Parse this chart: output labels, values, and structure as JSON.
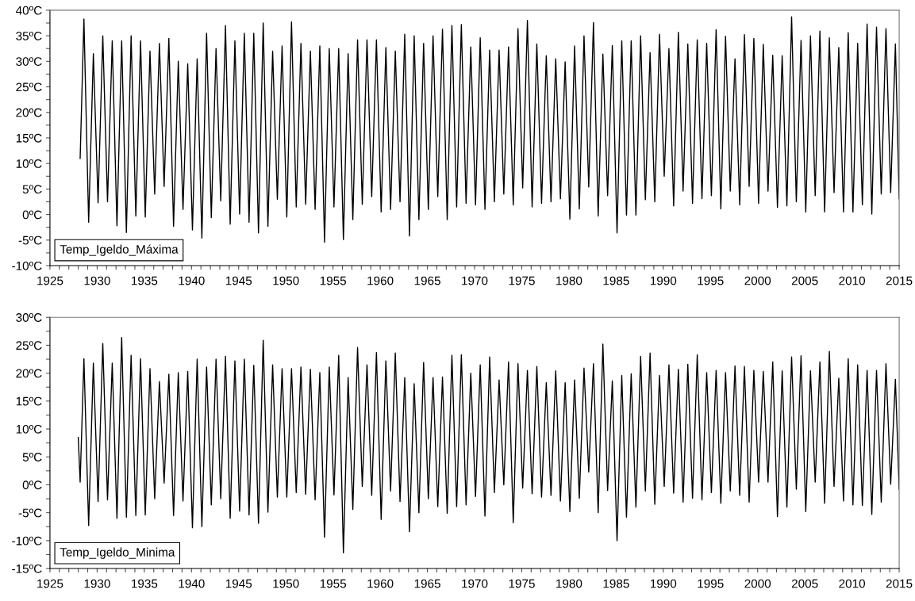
{
  "chart_data": [
    {
      "type": "line",
      "legend": "bottom left",
      "xlim": [
        1925,
        2015
      ],
      "ylim": [
        -10,
        40
      ],
      "xticks": [
        1925,
        {
          "value": 1926,
          "label": null
        },
        {
          "value": 1927,
          "label": null
        },
        {
          "value": 1928,
          "label": null
        },
        {
          "value": 1929,
          "label": null
        },
        1930,
        {
          "value": 1931,
          "label": null
        },
        {
          "value": 1932,
          "label": null
        },
        {
          "value": 1933,
          "label": null
        },
        {
          "value": 1934,
          "label": null
        },
        1935,
        {
          "value": 1936,
          "label": null
        },
        {
          "value": 1937,
          "label": null
        },
        {
          "value": 1938,
          "label": null
        },
        {
          "value": 1939,
          "label": null
        },
        1940,
        {
          "value": 1941,
          "label": null
        },
        {
          "value": 1942,
          "label": null
        },
        {
          "value": 1943,
          "label": null
        },
        {
          "value": 1944,
          "label": null
        },
        1945,
        {
          "value": 1946,
          "label": null
        },
        {
          "value": 1947,
          "label": null
        },
        {
          "value": 1948,
          "label": null
        },
        {
          "value": 1949,
          "label": null
        },
        1950,
        {
          "value": 1951,
          "label": null
        },
        {
          "value": 1952,
          "label": null
        },
        {
          "value": 1953,
          "label": null
        },
        {
          "value": 1954,
          "label": null
        },
        1955,
        {
          "value": 1956,
          "label": null
        },
        {
          "value": 1957,
          "label": null
        },
        {
          "value": 1958,
          "label": null
        },
        {
          "value": 1959,
          "label": null
        },
        1960,
        {
          "value": 1961,
          "label": null
        },
        {
          "value": 1962,
          "label": null
        },
        {
          "value": 1963,
          "label": null
        },
        {
          "value": 1964,
          "label": null
        },
        1965,
        {
          "value": 1966,
          "label": null
        },
        {
          "value": 1967,
          "label": null
        },
        {
          "value": 1968,
          "label": null
        },
        {
          "value": 1969,
          "label": null
        },
        1970,
        {
          "value": 1971,
          "label": null
        },
        {
          "value": 1972,
          "label": null
        },
        {
          "value": 1973,
          "label": null
        },
        {
          "value": 1974,
          "label": null
        },
        1975,
        {
          "value": 1976,
          "label": null
        },
        {
          "value": 1977,
          "label": null
        },
        {
          "value": 1978,
          "label": null
        },
        {
          "value": 1979,
          "label": null
        },
        1980,
        {
          "value": 1981,
          "label": null
        },
        {
          "value": 1982,
          "label": null
        },
        {
          "value": 1983,
          "label": null
        },
        {
          "value": 1984,
          "label": null
        },
        1985,
        {
          "value": 1986,
          "label": null
        },
        {
          "value": 1987,
          "label": null
        },
        {
          "value": 1988,
          "label": null
        },
        {
          "value": 1989,
          "label": null
        },
        1990,
        {
          "value": 1991,
          "label": null
        },
        {
          "value": 1992,
          "label": null
        },
        {
          "value": 1993,
          "label": null
        },
        {
          "value": 1994,
          "label": null
        },
        1995,
        {
          "value": 1996,
          "label": null
        },
        {
          "value": 1997,
          "label": null
        },
        {
          "value": 1998,
          "label": null
        },
        {
          "value": 1999,
          "label": null
        },
        2000,
        {
          "value": 2001,
          "label": null
        },
        {
          "value": 2002,
          "label": null
        },
        {
          "value": 2003,
          "label": null
        },
        {
          "value": 2004,
          "label": null
        },
        2005,
        {
          "value": 2006,
          "label": null
        },
        {
          "value": 2007,
          "label": null
        },
        {
          "value": 2008,
          "label": null
        },
        {
          "value": 2009,
          "label": null
        },
        2010,
        {
          "value": 2011,
          "label": null
        },
        {
          "value": 2012,
          "label": null
        },
        {
          "value": 2013,
          "label": null
        },
        {
          "value": 2014,
          "label": null
        },
        2015
      ],
      "yticks": [
        {
          "value": -10,
          "label": "-10ºC"
        },
        {
          "value": -7.5,
          "label": null
        },
        {
          "value": -5,
          "label": "-5ºC"
        },
        {
          "value": -2.5,
          "label": null
        },
        {
          "value": 0,
          "label": "0ºC"
        },
        {
          "value": 2.5,
          "label": null
        },
        {
          "value": 5,
          "label": "5ºC"
        },
        {
          "value": 7.5,
          "label": null
        },
        {
          "value": 10,
          "label": "10ºC"
        },
        {
          "value": 12.5,
          "label": null
        },
        {
          "value": 15,
          "label": "15ºC"
        },
        {
          "value": 17.5,
          "label": null
        },
        {
          "value": 20,
          "label": "20ºC"
        },
        {
          "value": 22.5,
          "label": null
        },
        {
          "value": 25,
          "label": "25ºC"
        },
        {
          "value": 27.5,
          "label": null
        },
        {
          "value": 30,
          "label": "30ºC"
        },
        {
          "value": 32.5,
          "label": null
        },
        {
          "value": 35,
          "label": "35ºC"
        },
        {
          "value": 37.5,
          "label": null
        },
        {
          "value": 40,
          "label": "40ºC"
        }
      ],
      "series": [
        {
          "name": "Temp_Igeldo_Máxima",
          "color": "#000000",
          "line_style": "solid",
          "x": [
            1928.2,
            1928.6,
            1929.1,
            1929.6,
            1930.1,
            1930.6,
            1931.1,
            1931.6,
            1932.1,
            1932.6,
            1933.1,
            1933.6,
            1934.1,
            1934.6,
            1935.1,
            1935.6,
            1936.1,
            1936.6,
            1937.1,
            1937.6,
            1938.1,
            1938.6,
            1939.1,
            1939.6,
            1940.1,
            1940.6,
            1941.1,
            1941.6,
            1942.1,
            1942.6,
            1943.1,
            1943.6,
            1944.1,
            1944.6,
            1945.1,
            1945.6,
            1946.1,
            1946.6,
            1947.1,
            1947.6,
            1948.1,
            1948.6,
            1949.1,
            1949.6,
            1950.1,
            1950.6,
            1951.1,
            1951.6,
            1952.1,
            1952.6,
            1953.1,
            1953.6,
            1954.1,
            1954.6,
            1955.1,
            1955.6,
            1956.1,
            1956.6,
            1957.1,
            1957.6,
            1958.1,
            1958.6,
            1959.1,
            1959.6,
            1960.1,
            1960.6,
            1961.1,
            1961.6,
            1962.1,
            1962.6,
            1963.1,
            1963.6,
            1964.1,
            1964.6,
            1965.1,
            1965.6,
            1966.1,
            1966.6,
            1967.1,
            1967.6,
            1968.1,
            1968.6,
            1969.1,
            1969.6,
            1970.1,
            1970.6,
            1971.1,
            1971.6,
            1972.1,
            1972.6,
            1973.1,
            1973.6,
            1974.1,
            1974.6,
            1975.1,
            1975.6,
            1976.1,
            1976.6,
            1977.1,
            1977.6,
            1978.1,
            1978.6,
            1979.1,
            1979.6,
            1980.1,
            1980.6,
            1981.1,
            1981.6,
            1982.1,
            1982.6,
            1983.1,
            1983.6,
            1984.1,
            1984.6,
            1985.1,
            1985.6,
            1986.1,
            1986.6,
            1987.1,
            1987.6,
            1988.1,
            1988.6,
            1989.1,
            1989.6,
            1990.1,
            1990.6,
            1991.1,
            1991.6,
            1992.1,
            1992.6,
            1993.1,
            1993.6,
            1994.1,
            1994.6,
            1995.1,
            1995.6,
            1996.1,
            1996.6,
            1997.1,
            1997.6,
            1998.1,
            1998.6,
            1999.1,
            1999.6,
            2000.1,
            2000.6,
            2001.1,
            2001.6,
            2002.1,
            2002.6,
            2003.1,
            2003.6,
            2004.1,
            2004.6,
            2005.1,
            2005.6,
            2006.1,
            2006.6,
            2007.1,
            2007.6,
            2008.1,
            2008.6,
            2009.1,
            2009.6,
            2010.1,
            2010.6,
            2011.1,
            2011.6,
            2012.1,
            2012.6,
            2013.1,
            2013.6,
            2014.1,
            2014.6,
            2015.0
          ],
          "values": [
            11,
            38.3,
            -1.5,
            31.5,
            2.3,
            35,
            2.5,
            34,
            -2.2,
            34,
            -3.5,
            35,
            -0.3,
            34,
            -0.5,
            32,
            4,
            33.5,
            5.5,
            34.5,
            -2.3,
            30,
            1,
            29.5,
            -3,
            30.5,
            -4.6,
            35.5,
            -0.6,
            32.5,
            2.7,
            37,
            -1.9,
            34,
            0.1,
            35.5,
            -1.5,
            35.5,
            -3.6,
            37.5,
            -2.3,
            32,
            3,
            33,
            -0.5,
            37.7,
            1.5,
            33.5,
            2,
            32,
            1,
            33,
            -5.4,
            32.5,
            1.5,
            32.5,
            -4.9,
            31.5,
            -1,
            34.2,
            2,
            34.2,
            3.5,
            34.2,
            0.5,
            32.7,
            1,
            32,
            2.5,
            35.3,
            -4.2,
            35,
            -1,
            33.5,
            1,
            35,
            3.5,
            36.3,
            -1,
            37,
            1.5,
            37.2,
            2.2,
            32.8,
            1.9,
            34.6,
            1,
            32.2,
            2.5,
            32.2,
            4,
            32.8,
            1.9,
            36.4,
            5.2,
            38,
            1.5,
            33.4,
            2.2,
            31.1,
            2.5,
            30.5,
            3.1,
            29.9,
            -0.9,
            33,
            1.1,
            35,
            5.4,
            37.6,
            -0.3,
            31.4,
            3.7,
            33.1,
            -3.6,
            34,
            -0.1,
            34,
            -0.1,
            35,
            2.9,
            31.7,
            2.5,
            35.3,
            7.5,
            32.5,
            1.7,
            35.7,
            4.6,
            33.4,
            2.2,
            34.2,
            3.1,
            33.5,
            3.7,
            36.2,
            1.1,
            34.9,
            4.6,
            30.5,
            1.9,
            35.2,
            5.5,
            34.5,
            2.2,
            33.3,
            4.6,
            31.2,
            1.4,
            31.1,
            1.7,
            38.7,
            2.5,
            34.1,
            0.5,
            35,
            3.7,
            35.9,
            0.5,
            34.6,
            4.3,
            32.7,
            0.5,
            35.6,
            0.5,
            33.5,
            1.9,
            37.3,
            0.1,
            36.7,
            4,
            36.4,
            4.3,
            33.4,
            3.1
          ]
        }
      ]
    },
    {
      "type": "line",
      "legend": "bottom left",
      "xlim": [
        1925,
        2015
      ],
      "ylim": [
        -15,
        30
      ],
      "xticks": [
        1925,
        {
          "value": 1926,
          "label": null
        },
        {
          "value": 1927,
          "label": null
        },
        {
          "value": 1928,
          "label": null
        },
        {
          "value": 1929,
          "label": null
        },
        1930,
        {
          "value": 1931,
          "label": null
        },
        {
          "value": 1932,
          "label": null
        },
        {
          "value": 1933,
          "label": null
        },
        {
          "value": 1934,
          "label": null
        },
        1935,
        {
          "value": 1936,
          "label": null
        },
        {
          "value": 1937,
          "label": null
        },
        {
          "value": 1938,
          "label": null
        },
        {
          "value": 1939,
          "label": null
        },
        1940,
        {
          "value": 1941,
          "label": null
        },
        {
          "value": 1942,
          "label": null
        },
        {
          "value": 1943,
          "label": null
        },
        {
          "value": 1944,
          "label": null
        },
        1945,
        {
          "value": 1946,
          "label": null
        },
        {
          "value": 1947,
          "label": null
        },
        {
          "value": 1948,
          "label": null
        },
        {
          "value": 1949,
          "label": null
        },
        1950,
        {
          "value": 1951,
          "label": null
        },
        {
          "value": 1952,
          "label": null
        },
        {
          "value": 1953,
          "label": null
        },
        {
          "value": 1954,
          "label": null
        },
        1955,
        {
          "value": 1956,
          "label": null
        },
        {
          "value": 1957,
          "label": null
        },
        {
          "value": 1958,
          "label": null
        },
        {
          "value": 1959,
          "label": null
        },
        1960,
        {
          "value": 1961,
          "label": null
        },
        {
          "value": 1962,
          "label": null
        },
        {
          "value": 1963,
          "label": null
        },
        {
          "value": 1964,
          "label": null
        },
        1965,
        {
          "value": 1966,
          "label": null
        },
        {
          "value": 1967,
          "label": null
        },
        {
          "value": 1968,
          "label": null
        },
        {
          "value": 1969,
          "label": null
        },
        1970,
        {
          "value": 1971,
          "label": null
        },
        {
          "value": 1972,
          "label": null
        },
        {
          "value": 1973,
          "label": null
        },
        {
          "value": 1974,
          "label": null
        },
        1975,
        {
          "value": 1976,
          "label": null
        },
        {
          "value": 1977,
          "label": null
        },
        {
          "value": 1978,
          "label": null
        },
        {
          "value": 1979,
          "label": null
        },
        1980,
        {
          "value": 1981,
          "label": null
        },
        {
          "value": 1982,
          "label": null
        },
        {
          "value": 1983,
          "label": null
        },
        {
          "value": 1984,
          "label": null
        },
        1985,
        {
          "value": 1986,
          "label": null
        },
        {
          "value": 1987,
          "label": null
        },
        {
          "value": 1988,
          "label": null
        },
        {
          "value": 1989,
          "label": null
        },
        1990,
        {
          "value": 1991,
          "label": null
        },
        {
          "value": 1992,
          "label": null
        },
        {
          "value": 1993,
          "label": null
        },
        {
          "value": 1994,
          "label": null
        },
        1995,
        {
          "value": 1996,
          "label": null
        },
        {
          "value": 1997,
          "label": null
        },
        {
          "value": 1998,
          "label": null
        },
        {
          "value": 1999,
          "label": null
        },
        2000,
        {
          "value": 2001,
          "label": null
        },
        {
          "value": 2002,
          "label": null
        },
        {
          "value": 2003,
          "label": null
        },
        {
          "value": 2004,
          "label": null
        },
        2005,
        {
          "value": 2006,
          "label": null
        },
        {
          "value": 2007,
          "label": null
        },
        {
          "value": 2008,
          "label": null
        },
        {
          "value": 2009,
          "label": null
        },
        2010,
        {
          "value": 2011,
          "label": null
        },
        {
          "value": 2012,
          "label": null
        },
        {
          "value": 2013,
          "label": null
        },
        {
          "value": 2014,
          "label": null
        },
        2015
      ],
      "yticks": [
        {
          "value": -15,
          "label": "-15ºC"
        },
        {
          "value": -12.5,
          "label": null
        },
        {
          "value": -10,
          "label": "-10ºC"
        },
        {
          "value": -7.5,
          "label": null
        },
        {
          "value": -5,
          "label": "-5ºC"
        },
        {
          "value": -2.5,
          "label": null
        },
        {
          "value": 0,
          "label": "0ºC"
        },
        {
          "value": 2.5,
          "label": null
        },
        {
          "value": 5,
          "label": "5ºC"
        },
        {
          "value": 7.5,
          "label": null
        },
        {
          "value": 10,
          "label": "10ºC"
        },
        {
          "value": 12.5,
          "label": null
        },
        {
          "value": 15,
          "label": "15ºC"
        },
        {
          "value": 17.5,
          "label": null
        },
        {
          "value": 20,
          "label": "20ºC"
        },
        {
          "value": 22.5,
          "label": null
        },
        {
          "value": 25,
          "label": "25ºC"
        },
        {
          "value": 27.5,
          "label": null
        },
        {
          "value": 30,
          "label": "30ºC"
        }
      ],
      "series": [
        {
          "name": "Temp_Igeldo_Minima",
          "color": "#000000",
          "line_style": "solid",
          "x": [
            1928.0,
            1928.2,
            1928.6,
            1929.1,
            1929.6,
            1930.1,
            1930.6,
            1931.1,
            1931.6,
            1932.1,
            1932.6,
            1933.1,
            1933.6,
            1934.1,
            1934.6,
            1935.1,
            1935.6,
            1936.1,
            1936.6,
            1937.1,
            1937.6,
            1938.1,
            1938.6,
            1939.1,
            1939.6,
            1940.1,
            1940.6,
            1941.1,
            1941.6,
            1942.1,
            1942.6,
            1943.1,
            1943.6,
            1944.1,
            1944.6,
            1945.1,
            1945.6,
            1946.1,
            1946.6,
            1947.1,
            1947.6,
            1948.1,
            1948.6,
            1949.1,
            1949.6,
            1950.1,
            1950.6,
            1951.1,
            1951.6,
            1952.1,
            1952.6,
            1953.1,
            1953.6,
            1954.1,
            1954.6,
            1955.1,
            1955.6,
            1956.1,
            1956.6,
            1957.1,
            1957.6,
            1958.1,
            1958.6,
            1959.1,
            1959.6,
            1960.1,
            1960.6,
            1961.1,
            1961.6,
            1962.1,
            1962.6,
            1963.1,
            1963.6,
            1964.1,
            1964.6,
            1965.1,
            1965.6,
            1966.1,
            1966.6,
            1967.1,
            1967.6,
            1968.1,
            1968.6,
            1969.1,
            1969.6,
            1970.1,
            1970.6,
            1971.1,
            1971.6,
            1972.1,
            1972.6,
            1973.1,
            1973.6,
            1974.1,
            1974.6,
            1975.1,
            1975.6,
            1976.1,
            1976.6,
            1977.1,
            1977.6,
            1978.1,
            1978.6,
            1979.1,
            1979.6,
            1980.1,
            1980.6,
            1981.1,
            1981.6,
            1982.1,
            1982.6,
            1983.1,
            1983.6,
            1984.1,
            1984.6,
            1985.1,
            1985.6,
            1986.1,
            1986.6,
            1987.1,
            1987.6,
            1988.1,
            1988.6,
            1989.1,
            1989.6,
            1990.1,
            1990.6,
            1991.1,
            1991.6,
            1992.1,
            1992.6,
            1993.1,
            1993.6,
            1994.1,
            1994.6,
            1995.1,
            1995.6,
            1996.1,
            1996.6,
            1997.1,
            1997.6,
            1998.1,
            1998.6,
            1999.1,
            1999.6,
            2000.1,
            2000.6,
            2001.1,
            2001.6,
            2002.1,
            2002.6,
            2003.1,
            2003.6,
            2004.1,
            2004.6,
            2005.1,
            2005.6,
            2006.1,
            2006.6,
            2007.1,
            2007.6,
            2008.1,
            2008.6,
            2009.1,
            2009.6,
            2010.1,
            2010.6,
            2011.1,
            2011.6,
            2012.1,
            2012.6,
            2013.1,
            2013.6,
            2014.1,
            2014.6,
            2015.0
          ],
          "values": [
            8.5,
            0.5,
            22.6,
            -7.3,
            21.8,
            -3,
            25.3,
            -2.7,
            21.8,
            -6,
            26.4,
            -5.8,
            23.2,
            -5.5,
            22.6,
            -5.4,
            20.8,
            -2.5,
            18.5,
            0.3,
            19.8,
            -5.5,
            20.1,
            -2.9,
            20.3,
            -7.7,
            22.5,
            -7.5,
            21.1,
            -3.6,
            22.5,
            -2.5,
            23,
            -6,
            22.2,
            -4.7,
            22.5,
            -5.4,
            21.4,
            -6.9,
            25.9,
            -4.9,
            21.5,
            -2.2,
            20.8,
            -2.2,
            20.8,
            -1.4,
            21.1,
            -1.7,
            20.7,
            -2.7,
            20.1,
            -9.4,
            21.1,
            -1.8,
            23.2,
            -12.2,
            19.2,
            -4.4,
            24.6,
            -0.3,
            21.5,
            -1.9,
            23.7,
            -6.2,
            22.2,
            -1.1,
            23.6,
            -3,
            19.2,
            -8.4,
            18.1,
            -5,
            21.9,
            -2.5,
            19.2,
            -3.9,
            19.3,
            -5.1,
            23.2,
            -3.9,
            23.3,
            -3.6,
            20,
            -2.1,
            21.5,
            -5.6,
            22.9,
            -1.4,
            18.8,
            0,
            22,
            -6.8,
            21.7,
            -0.6,
            20.5,
            -1.6,
            21.2,
            -2.2,
            18.3,
            -1.9,
            20.4,
            -2.9,
            18.3,
            -4.8,
            18.8,
            -2.4,
            20.9,
            2.3,
            21.7,
            -5,
            25.2,
            -1,
            18.6,
            -10,
            19.6,
            -5.8,
            19.9,
            -4,
            23,
            -1.1,
            23.6,
            -3.5,
            19.6,
            -0.3,
            21.5,
            -1.5,
            20.7,
            -3.1,
            21.6,
            -2.4,
            23.3,
            -2.7,
            20.1,
            -1.4,
            20.5,
            -3.3,
            20.1,
            -1.1,
            21.3,
            -1.9,
            21.2,
            -3.1,
            20.5,
            0.5,
            20.3,
            0.5,
            22,
            -5.7,
            20.4,
            -4,
            22.9,
            -0.8,
            23.1,
            -4.8,
            20.4,
            0.5,
            22,
            -3.3,
            23.9,
            -0.3,
            19.1,
            -2.9,
            22.6,
            -3.6,
            21.5,
            -3.7,
            20.5,
            -5.3,
            20.5,
            -3.1,
            21.7,
            0.1,
            18.9,
            -0.8
          ]
        }
      ]
    }
  ]
}
